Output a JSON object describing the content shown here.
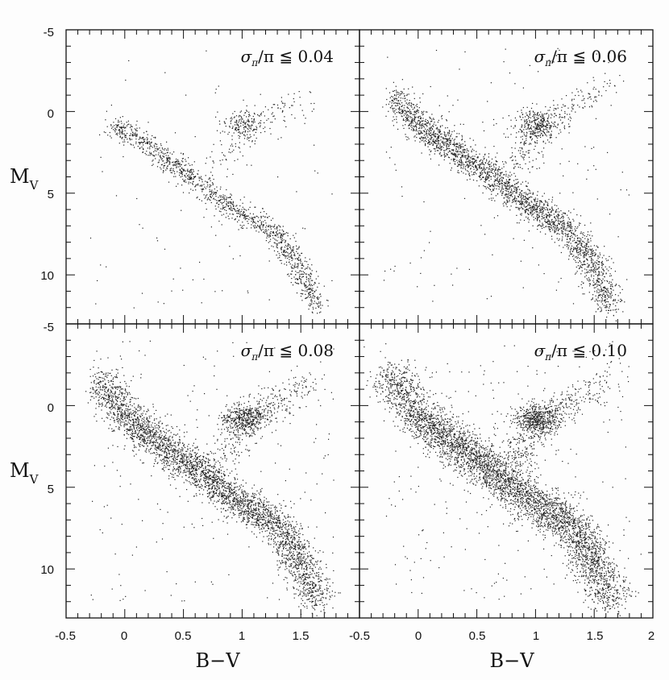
{
  "chart_data": [
    {
      "type": "scatter",
      "panel": "top-left",
      "label_sigma": "σ",
      "label_pi_sub": "π",
      "label_rest": "/π ≦ 0.04",
      "xlim": [
        -0.5,
        2.0
      ],
      "ylim": [
        13,
        -5
      ],
      "xlabel": "",
      "ylabel": "M_V",
      "density": 1700,
      "sequences": {
        "main_sequence": [
          [
            -0.1,
            0.8
          ],
          [
            0.1,
            1.6
          ],
          [
            0.3,
            2.6
          ],
          [
            0.5,
            3.6
          ],
          [
            0.7,
            4.8
          ],
          [
            0.9,
            5.8
          ],
          [
            1.1,
            6.6
          ],
          [
            1.3,
            7.6
          ],
          [
            1.4,
            8.6
          ],
          [
            1.5,
            10.0
          ],
          [
            1.65,
            12.0
          ]
        ],
        "red_clump": {
          "x": 1.0,
          "y": 0.8
        },
        "giant_branch": [
          [
            0.8,
            3.5
          ],
          [
            0.95,
            2.0
          ],
          [
            1.1,
            0.8
          ],
          [
            1.3,
            0.0
          ],
          [
            1.55,
            -0.8
          ]
        ]
      }
    },
    {
      "type": "scatter",
      "panel": "top-right",
      "label_sigma": "σ",
      "label_pi_sub": "π",
      "label_rest": "/π ≦ 0.06",
      "xlim": [
        -0.5,
        2.0
      ],
      "ylim": [
        13,
        -5
      ],
      "xlabel": "",
      "ylabel": "",
      "density": 3200,
      "sequences": {
        "main_sequence": [
          [
            -0.2,
            -0.8
          ],
          [
            0.0,
            0.8
          ],
          [
            0.2,
            1.8
          ],
          [
            0.4,
            2.8
          ],
          [
            0.6,
            3.8
          ],
          [
            0.8,
            5.0
          ],
          [
            1.0,
            6.0
          ],
          [
            1.2,
            6.8
          ],
          [
            1.4,
            8.2
          ],
          [
            1.5,
            9.8
          ],
          [
            1.65,
            12.0
          ]
        ],
        "red_clump": {
          "x": 1.0,
          "y": 0.8
        },
        "giant_branch": [
          [
            0.8,
            3.5
          ],
          [
            0.95,
            2.0
          ],
          [
            1.1,
            0.6
          ],
          [
            1.3,
            -0.2
          ],
          [
            1.6,
            -1.5
          ]
        ]
      }
    },
    {
      "type": "scatter",
      "panel": "bottom-left",
      "label_sigma": "σ",
      "label_pi_sub": "π",
      "label_rest": "/π ≦ 0.08",
      "xlim": [
        -0.5,
        2.0
      ],
      "ylim": [
        13,
        -5
      ],
      "xlabel": "B−V",
      "ylabel": "M_V",
      "density": 4300,
      "sequences": {
        "main_sequence": [
          [
            -0.2,
            -1.5
          ],
          [
            0.0,
            0.5
          ],
          [
            0.2,
            1.8
          ],
          [
            0.4,
            2.8
          ],
          [
            0.6,
            3.8
          ],
          [
            0.8,
            5.0
          ],
          [
            1.0,
            6.0
          ],
          [
            1.2,
            6.8
          ],
          [
            1.4,
            8.2
          ],
          [
            1.5,
            9.8
          ],
          [
            1.65,
            12.0
          ]
        ],
        "red_clump": {
          "x": 1.0,
          "y": 0.8
        },
        "giant_branch": [
          [
            0.8,
            3.5
          ],
          [
            0.95,
            2.0
          ],
          [
            1.1,
            0.6
          ],
          [
            1.3,
            -0.2
          ],
          [
            1.6,
            -1.5
          ]
        ]
      }
    },
    {
      "type": "scatter",
      "panel": "bottom-right",
      "label_sigma": "σ",
      "label_pi_sub": "π",
      "label_rest": "/π ≦ 0.10",
      "xlim": [
        -0.5,
        2.0
      ],
      "ylim": [
        13,
        -5
      ],
      "xlabel": "B−V",
      "ylabel": "",
      "density": 5200,
      "sequences": {
        "main_sequence": [
          [
            -0.25,
            -2.0
          ],
          [
            0.0,
            0.5
          ],
          [
            0.2,
            1.8
          ],
          [
            0.4,
            2.8
          ],
          [
            0.6,
            3.8
          ],
          [
            0.8,
            5.0
          ],
          [
            1.0,
            6.0
          ],
          [
            1.2,
            6.8
          ],
          [
            1.4,
            8.2
          ],
          [
            1.5,
            9.8
          ],
          [
            1.65,
            12.0
          ]
        ],
        "red_clump": {
          "x": 1.0,
          "y": 0.8
        },
        "giant_branch": [
          [
            0.8,
            3.5
          ],
          [
            0.95,
            2.0
          ],
          [
            1.1,
            0.6
          ],
          [
            1.3,
            -0.2
          ],
          [
            1.6,
            -1.5
          ]
        ]
      }
    }
  ],
  "axes": {
    "y_tick_labels_top": [
      "-5",
      "0",
      "5",
      "10"
    ],
    "y_tick_values_top": [
      -5,
      0,
      5,
      10
    ],
    "y_tick_labels_bottom": [
      "-5",
      "0",
      "5",
      "10"
    ],
    "y_tick_values_bottom": [
      -5,
      0,
      5,
      10
    ],
    "x_tick_labels_left": [
      "-0.5",
      "0",
      "0.5",
      "1",
      "1.5"
    ],
    "x_tick_values_left": [
      -0.5,
      0,
      0.5,
      1,
      1.5
    ],
    "x_tick_labels_right": [
      "-0.5",
      "0",
      "0.5",
      "1",
      "1.5",
      "2"
    ],
    "x_tick_values_right": [
      -0.5,
      0,
      0.5,
      1,
      1.5,
      2
    ],
    "ylabel_main": "M",
    "ylabel_sub": "V",
    "xlabel": "B−V"
  }
}
